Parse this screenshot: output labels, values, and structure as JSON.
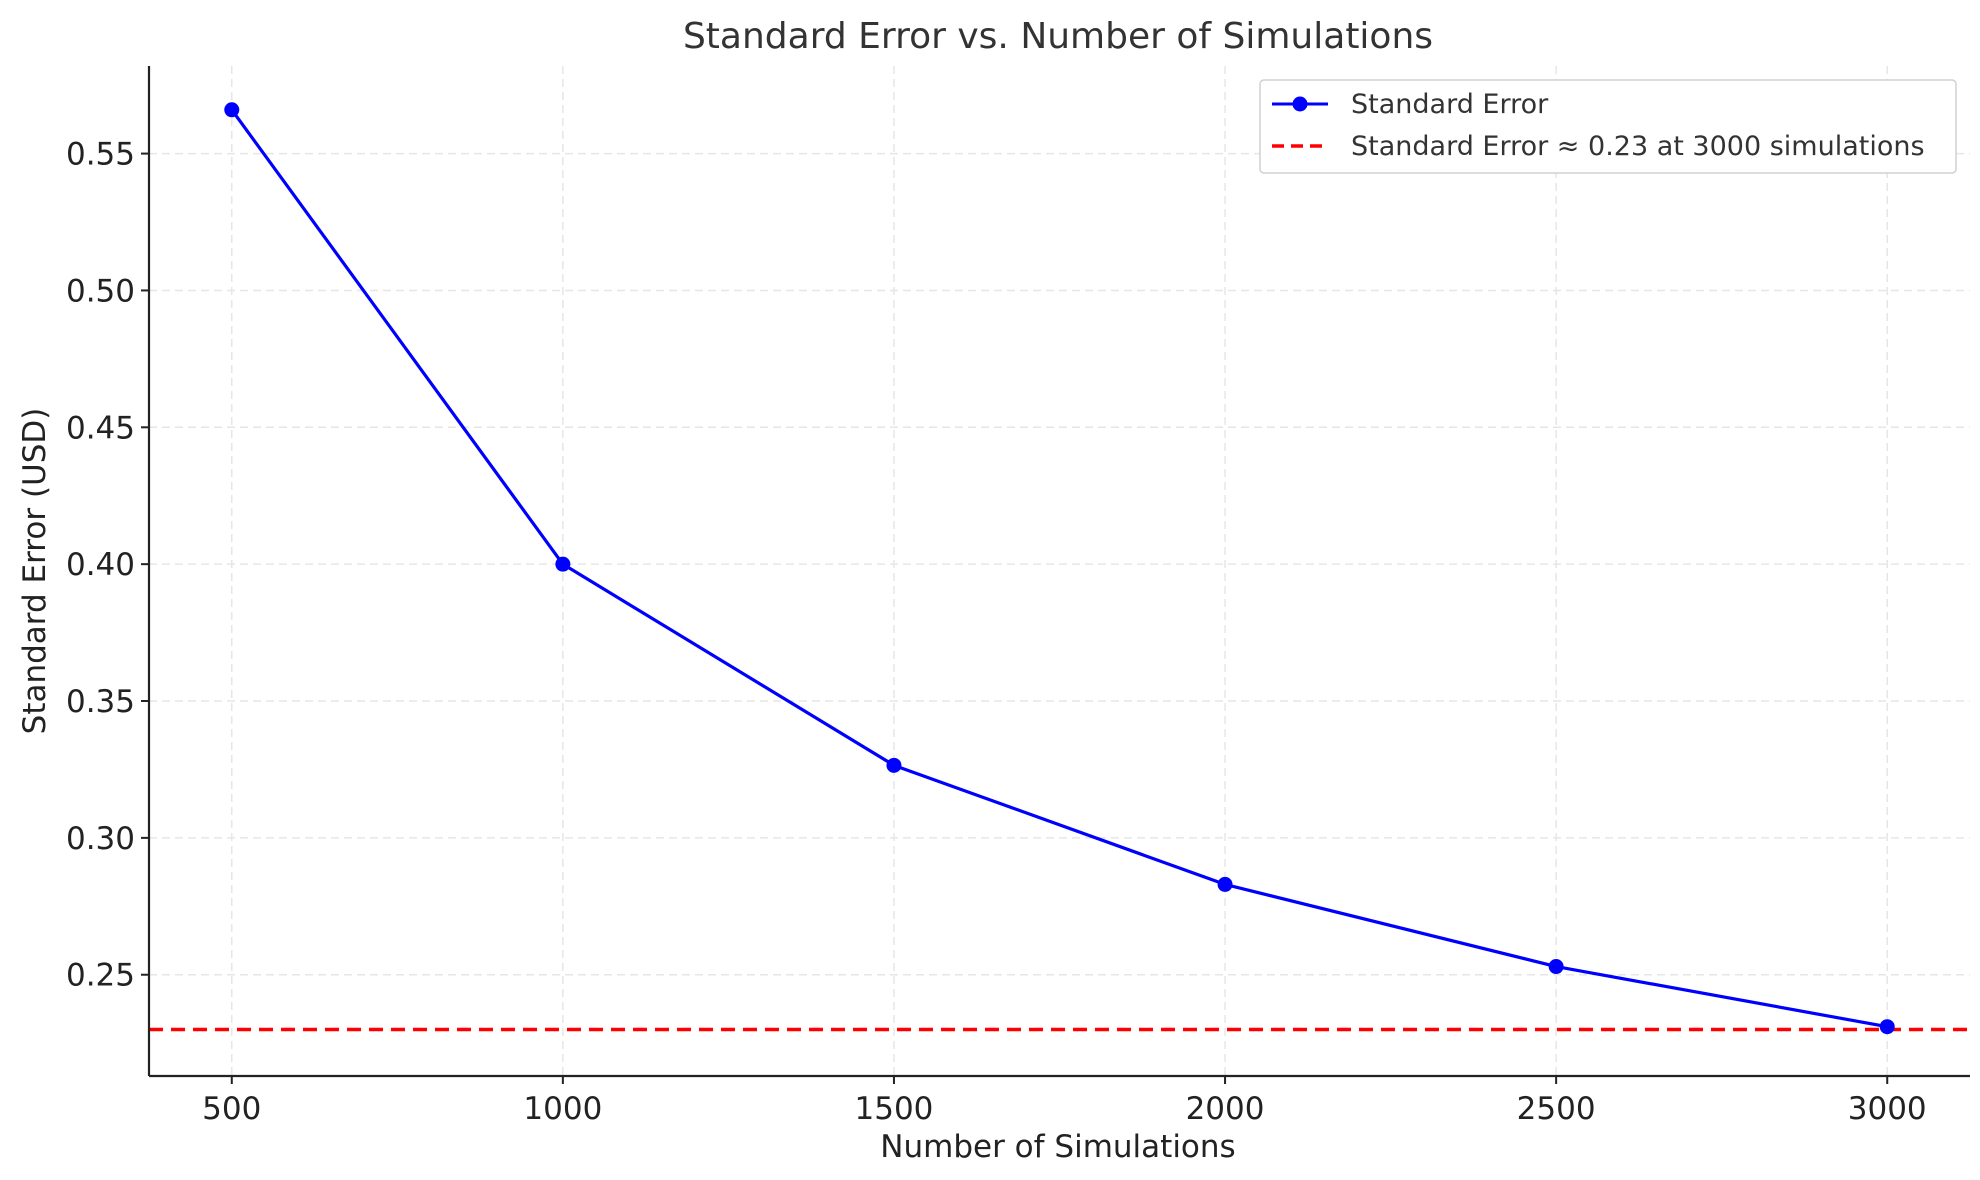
{
  "chart_data": {
    "type": "line",
    "title": "Standard Error vs. Number of Simulations",
    "xlabel": "Number of Simulations",
    "ylabel": "Standard Error (USD)",
    "x": [
      500,
      1000,
      1500,
      2000,
      2500,
      3000
    ],
    "series": [
      {
        "name": "Standard Error",
        "values": [
          0.566,
          0.4,
          0.3265,
          0.283,
          0.253,
          0.231
        ],
        "color": "#0000ff",
        "style": "solid",
        "marker": "circle"
      }
    ],
    "reference_lines": [
      {
        "name": "Standard Error ≈ 0.23 at 3000 simulations",
        "y": 0.23,
        "color": "#ff0000",
        "style": "dashed"
      }
    ],
    "xticks": [
      "500",
      "1000",
      "1500",
      "2000",
      "2500",
      "3000"
    ],
    "yticks": [
      "0.25",
      "0.30",
      "0.35",
      "0.40",
      "0.45",
      "0.50",
      "0.55"
    ],
    "xlim": [
      375,
      3125
    ],
    "ylim": [
      0.213,
      0.582
    ],
    "grid": true,
    "legend_position": "top-right"
  }
}
